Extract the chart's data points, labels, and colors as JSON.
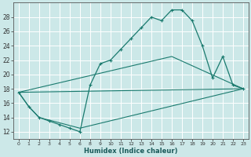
{
  "xlabel": "Humidex (Indice chaleur)",
  "bg_color": "#cce8e8",
  "line_color": "#1a7a6e",
  "grid_color": "#ffffff",
  "ylim": [
    11,
    30
  ],
  "yticks": [
    12,
    14,
    16,
    18,
    20,
    22,
    24,
    26,
    28
  ],
  "xtick_labels": [
    "0",
    "1",
    "2",
    "3",
    "4",
    "5",
    "6",
    "8",
    "9",
    "10",
    "11",
    "12",
    "13",
    "14",
    "15",
    "16",
    "17",
    "18",
    "19",
    "20",
    "21",
    "22",
    "23"
  ],
  "series1_idx": [
    0,
    1,
    2,
    3,
    4,
    5,
    6,
    7,
    8,
    9,
    10,
    11,
    12,
    13,
    14,
    15,
    16,
    17,
    18,
    19,
    20,
    21,
    22
  ],
  "series1_y": [
    17.5,
    15.5,
    14.0,
    13.5,
    13.0,
    12.5,
    12.0,
    18.5,
    21.5,
    22.0,
    23.5,
    25.0,
    26.5,
    28.0,
    27.5,
    29.0,
    29.0,
    27.5,
    24.0,
    19.5,
    22.5,
    18.5,
    18.0
  ],
  "line2_idx": [
    0,
    15,
    22
  ],
  "line2_y": [
    17.5,
    22.5,
    18.0
  ],
  "line3_idx": [
    0,
    1,
    2,
    6,
    22
  ],
  "line3_y": [
    17.5,
    15.5,
    14.0,
    12.5,
    18.0
  ],
  "line4_idx": [
    0,
    22
  ],
  "line4_y": [
    17.5,
    18.0
  ]
}
